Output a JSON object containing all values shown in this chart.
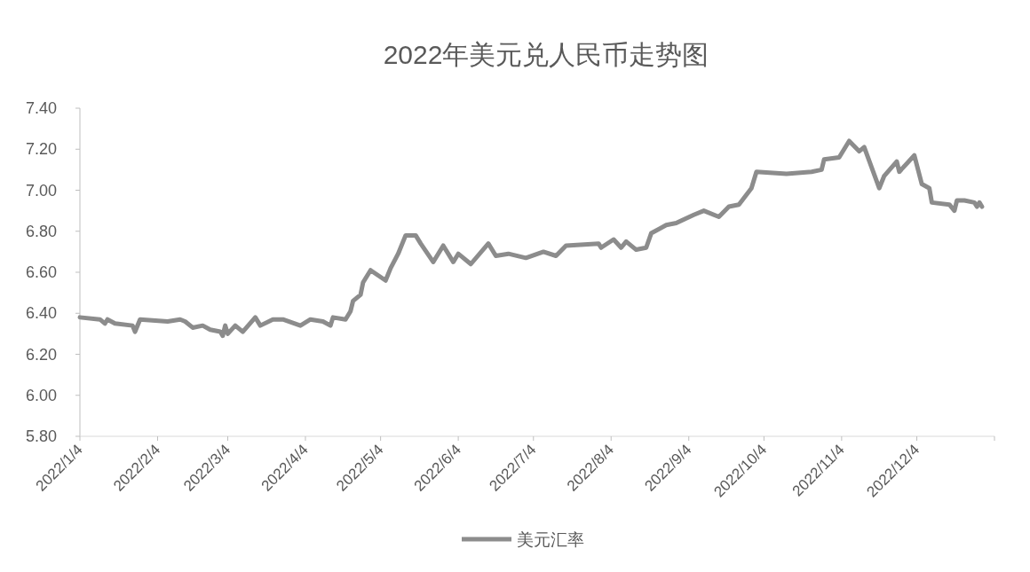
{
  "chart_data": {
    "type": "line",
    "title": "2022年美元兑人民币走势图",
    "x": [
      "2022-01-04",
      "2022-01-12",
      "2022-01-14",
      "2022-01-15",
      "2022-01-18",
      "2022-01-25",
      "2022-01-26",
      "2022-01-28",
      "2022-02-08",
      "2022-02-13",
      "2022-02-15",
      "2022-02-18",
      "2022-02-22",
      "2022-02-25",
      "2022-03-01",
      "2022-03-02",
      "2022-03-03",
      "2022-03-04",
      "2022-03-07",
      "2022-03-10",
      "2022-03-15",
      "2022-03-17",
      "2022-03-22",
      "2022-03-26",
      "2022-04-02",
      "2022-04-06",
      "2022-04-11",
      "2022-04-14",
      "2022-04-15",
      "2022-04-20",
      "2022-04-22",
      "2022-04-23",
      "2022-04-26",
      "2022-04-27",
      "2022-04-30",
      "2022-05-06",
      "2022-05-08",
      "2022-05-11",
      "2022-05-14",
      "2022-05-18",
      "2022-05-20",
      "2022-05-25",
      "2022-05-29",
      "2022-06-02",
      "2022-06-04",
      "2022-06-09",
      "2022-06-16",
      "2022-06-19",
      "2022-06-24",
      "2022-07-01",
      "2022-07-08",
      "2022-07-13",
      "2022-07-17",
      "2022-07-30",
      "2022-07-31",
      "2022-08-05",
      "2022-08-08",
      "2022-08-10",
      "2022-08-14",
      "2022-08-18",
      "2022-08-20",
      "2022-08-26",
      "2022-08-30",
      "2022-09-06",
      "2022-09-10",
      "2022-09-16",
      "2022-09-20",
      "2022-09-24",
      "2022-09-29",
      "2022-10-01",
      "2022-10-13",
      "2022-10-23",
      "2022-10-27",
      "2022-10-28",
      "2022-11-03",
      "2022-11-07",
      "2022-11-11",
      "2022-11-13",
      "2022-11-19",
      "2022-11-21",
      "2022-11-26",
      "2022-11-27",
      "2022-12-03",
      "2022-12-06",
      "2022-12-09",
      "2022-12-10",
      "2022-12-17",
      "2022-12-19",
      "2022-12-20",
      "2022-12-23",
      "2022-12-27",
      "2022-12-28",
      "2022-12-29",
      "2022-12-30"
    ],
    "series": [
      {
        "name": "美元汇率",
        "color": "#8c8c8c",
        "values": [
          6.38,
          6.37,
          6.35,
          6.37,
          6.35,
          6.34,
          6.31,
          6.37,
          6.36,
          6.37,
          6.36,
          6.33,
          6.34,
          6.32,
          6.31,
          6.29,
          6.34,
          6.3,
          6.34,
          6.31,
          6.38,
          6.34,
          6.37,
          6.37,
          6.34,
          6.37,
          6.36,
          6.34,
          6.38,
          6.37,
          6.41,
          6.46,
          6.49,
          6.55,
          6.61,
          6.56,
          6.62,
          6.69,
          6.78,
          6.78,
          6.74,
          6.65,
          6.73,
          6.65,
          6.69,
          6.64,
          6.74,
          6.68,
          6.69,
          6.67,
          6.7,
          6.68,
          6.73,
          6.74,
          6.72,
          6.76,
          6.72,
          6.75,
          6.71,
          6.72,
          6.79,
          6.83,
          6.84,
          6.88,
          6.9,
          6.87,
          6.92,
          6.93,
          7.01,
          7.09,
          7.08,
          7.09,
          7.1,
          7.15,
          7.16,
          7.24,
          7.19,
          7.21,
          7.01,
          7.07,
          7.14,
          7.09,
          7.17,
          7.03,
          7.01,
          6.94,
          6.93,
          6.9,
          6.95,
          6.95,
          6.94,
          6.92,
          6.94,
          6.92
        ]
      }
    ],
    "xlim": [
      "2022-01-04",
      "2023-01-04"
    ],
    "xticks": [
      {
        "value": "2022-01-04",
        "label": "2022/1/4"
      },
      {
        "value": "2022-02-04",
        "label": "2022/2/4"
      },
      {
        "value": "2022-03-04",
        "label": "2022/3/4"
      },
      {
        "value": "2022-04-04",
        "label": "2022/4/4"
      },
      {
        "value": "2022-05-04",
        "label": "2022/5/4"
      },
      {
        "value": "2022-06-04",
        "label": "2022/6/4"
      },
      {
        "value": "2022-07-04",
        "label": "2022/7/4"
      },
      {
        "value": "2022-08-04",
        "label": "2022/8/4"
      },
      {
        "value": "2022-09-04",
        "label": "2022/9/4"
      },
      {
        "value": "2022-10-04",
        "label": "2022/10/4"
      },
      {
        "value": "2022-11-04",
        "label": "2022/11/4"
      },
      {
        "value": "2022-12-04",
        "label": "2022/12/4"
      },
      {
        "value": "2023-01-04",
        "label": null
      }
    ],
    "ylim": [
      5.8,
      7.4
    ],
    "yticks": [
      {
        "value": 5.8,
        "label": "5.80"
      },
      {
        "value": 6.0,
        "label": "6.00"
      },
      {
        "value": 6.2,
        "label": "6.20"
      },
      {
        "value": 6.4,
        "label": "6.40"
      },
      {
        "value": 6.6,
        "label": "6.60"
      },
      {
        "value": 6.8,
        "label": "6.80"
      },
      {
        "value": 7.0,
        "label": "7.00"
      },
      {
        "value": 7.2,
        "label": "7.20"
      },
      {
        "value": 7.4,
        "label": "7.40"
      }
    ],
    "grid": false,
    "legend": "bottom",
    "marker": "none",
    "line_style": "solid"
  }
}
